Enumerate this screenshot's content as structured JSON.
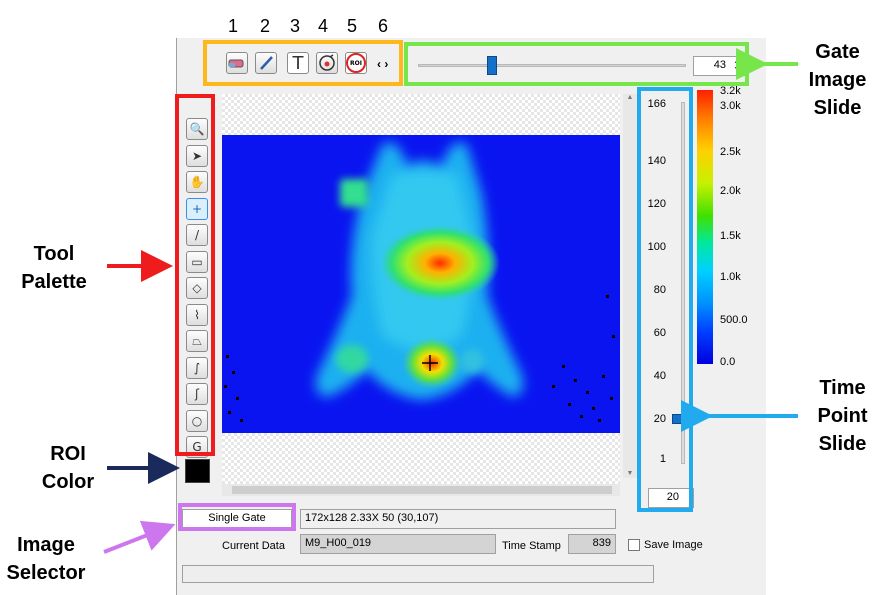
{
  "toolbar_numbers": [
    "1",
    "2",
    "3",
    "4",
    "5",
    "6"
  ],
  "toolbar": {
    "text_tool_glyph": "T",
    "roi_label": "ROI",
    "nav_glyph": "‹ ›"
  },
  "gate_slider": {
    "value": "43",
    "fraction": 0.3
  },
  "time_slider": {
    "ticks": [
      "166",
      "140",
      "120",
      "100",
      "80",
      "60",
      "40",
      "20",
      "1"
    ],
    "value": "20",
    "field_value": "20"
  },
  "colorbar": {
    "labels": [
      "3.2k",
      "3.0k",
      "2.5k",
      "2.0k",
      "1.5k",
      "1.0k",
      "500.0",
      "0.0"
    ]
  },
  "callouts": {
    "gate": [
      "Gate",
      "Image",
      "Slide"
    ],
    "tool": [
      "Tool",
      "Palette"
    ],
    "roi_color": [
      "ROI",
      "Color"
    ],
    "time": [
      "Time",
      "Point",
      "Slide"
    ],
    "image_selector": [
      "Image",
      "Selector"
    ]
  },
  "tools": [
    {
      "icon": "magnifier-icon",
      "glyph": "🔍"
    },
    {
      "icon": "arrow-pointer-icon",
      "glyph": "➤"
    },
    {
      "icon": "hand-icon",
      "glyph": "✋"
    },
    {
      "icon": "crosshair-icon",
      "glyph": "+"
    },
    {
      "icon": "line-icon",
      "glyph": "/"
    },
    {
      "icon": "rectangle-icon",
      "glyph": "▭"
    },
    {
      "icon": "diamond-icon",
      "glyph": "◇"
    },
    {
      "icon": "polyline-icon",
      "glyph": "⌇"
    },
    {
      "icon": "polygon-icon",
      "glyph": "⏢"
    },
    {
      "icon": "curve-icon",
      "glyph": "∫"
    },
    {
      "icon": "freehand-icon",
      "glyph": "ʃ"
    },
    {
      "icon": "ellipse-icon",
      "glyph": "○"
    },
    {
      "icon": "spiral-icon",
      "glyph": "G"
    }
  ],
  "roi_color": "#000000",
  "bottom": {
    "image_selector_button": "Single Gate",
    "image_info": "172x128 2.33X 50    (30,107)",
    "current_data_label": "Current Data",
    "current_data_value": "M9_H00_019",
    "time_stamp_label": "Time Stamp",
    "time_stamp_value": "839",
    "save_image_label": "Save Image"
  },
  "colors": {
    "red_box": "#ee1c1c",
    "orange_box": "#ffb81c",
    "green_box": "#76e64a",
    "blue_box": "#22aaee",
    "purple_box": "#cc77ee",
    "navy_arrow": "#1a2a5a"
  }
}
